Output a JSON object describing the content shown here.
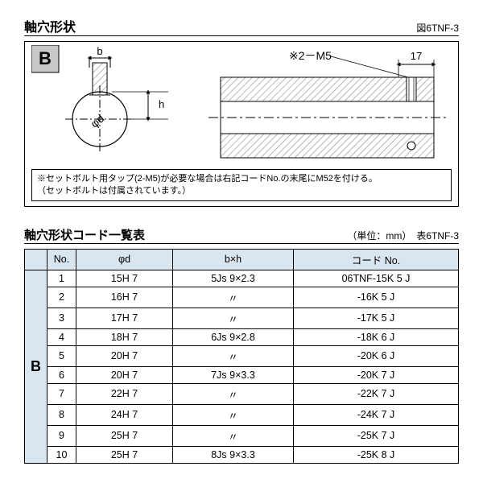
{
  "figure": {
    "title": "軸穴形状",
    "label": "図6TNF-3",
    "group_letter": "B",
    "dim_b": "b",
    "dim_h": "h",
    "dim_d": "φd",
    "dim_17": "17",
    "tap_label": "※2－M5",
    "note_line1": "※セットボルト用タップ(2-M5)が必要な場合は右記コードNo.の末尾にM52を付ける。",
    "note_line2": "（セットボルトは付属されています。）",
    "colors": {
      "hatch": "#888888",
      "line": "#000000",
      "bg": "#ffffff",
      "label_bg": "#c8c8c8"
    }
  },
  "table": {
    "title": "軸穴形状コード一覧表",
    "unit": "（単位：mm）　表6TNF-3",
    "group_letter": "B",
    "columns": [
      "",
      "No.",
      "φd",
      "b×h",
      "コード No."
    ],
    "rows": [
      {
        "no": "1",
        "d": "15H 7",
        "bh": "5Js 9×2.3",
        "code": "06TNF-15K 5 J"
      },
      {
        "no": "2",
        "d": "16H 7",
        "bh": "〃",
        "code": "-16K 5 J"
      },
      {
        "no": "3",
        "d": "17H 7",
        "bh": "〃",
        "code": "-17K 5 J"
      },
      {
        "no": "4",
        "d": "18H 7",
        "bh": "6Js 9×2.8",
        "code": "-18K 6 J"
      },
      {
        "no": "5",
        "d": "20H 7",
        "bh": "〃",
        "code": "-20K 6 J"
      },
      {
        "no": "6",
        "d": "20H 7",
        "bh": "7Js 9×3.3",
        "code": "-20K 7 J"
      },
      {
        "no": "7",
        "d": "22H 7",
        "bh": "〃",
        "code": "-22K 7 J"
      },
      {
        "no": "8",
        "d": "24H 7",
        "bh": "〃",
        "code": "-24K 7 J"
      },
      {
        "no": "9",
        "d": "25H 7",
        "bh": "〃",
        "code": "-25K 7 J"
      },
      {
        "no": "10",
        "d": "25H 7",
        "bh": "8Js 9×3.3",
        "code": "-25K 8 J"
      }
    ],
    "header_bg": "#d9e6ef"
  }
}
